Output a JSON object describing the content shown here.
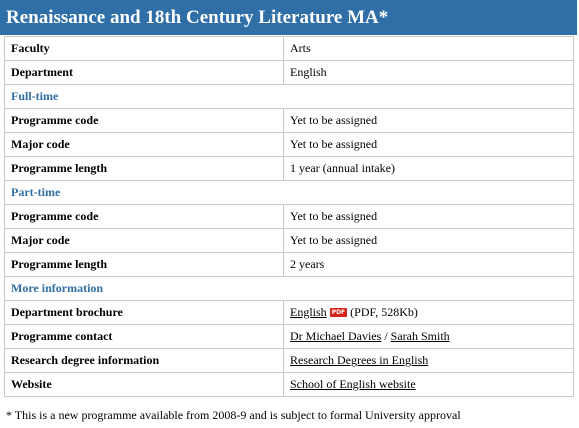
{
  "title": "Renaissance and 18th Century Literature MA*",
  "table": {
    "rows": [
      {
        "label": "Faculty",
        "value": [
          {
            "text": "Arts"
          }
        ]
      },
      {
        "label": "Department",
        "value": [
          {
            "text": "English"
          }
        ]
      },
      {
        "section": "Full-time"
      },
      {
        "label": "Programme code",
        "value": [
          {
            "text": "Yet to be assigned"
          }
        ]
      },
      {
        "label": "Major code",
        "value": [
          {
            "text": "Yet to be assigned"
          }
        ]
      },
      {
        "label": "Programme length",
        "value": [
          {
            "text": "1 year (annual intake)"
          }
        ]
      },
      {
        "section": "Part-time"
      },
      {
        "label": "Programme code",
        "value": [
          {
            "text": "Yet to be assigned"
          }
        ]
      },
      {
        "label": "Major code",
        "value": [
          {
            "text": "Yet to be assigned"
          }
        ]
      },
      {
        "label": "Programme length",
        "value": [
          {
            "text": "2 years"
          }
        ]
      },
      {
        "section": "More information"
      },
      {
        "label": "Department brochure",
        "value": [
          {
            "text": "English",
            "link": true
          },
          {
            "icon": "PDF"
          },
          {
            "text": "(PDF, 528Kb)"
          }
        ]
      },
      {
        "label": "Programme contact",
        "value": [
          {
            "text": "Dr Michael Davies",
            "link": true
          },
          {
            "text": "/"
          },
          {
            "text": "Sarah Smith",
            "link": true
          }
        ]
      },
      {
        "label": "Research degree information",
        "value": [
          {
            "text": "Research Degrees in English",
            "link": true
          }
        ]
      },
      {
        "label": "Website",
        "value": [
          {
            "text": "School of English website",
            "link": true
          }
        ]
      }
    ]
  },
  "footnote": "* This is a new programme available from 2008-9 and is subject to formal University approval"
}
